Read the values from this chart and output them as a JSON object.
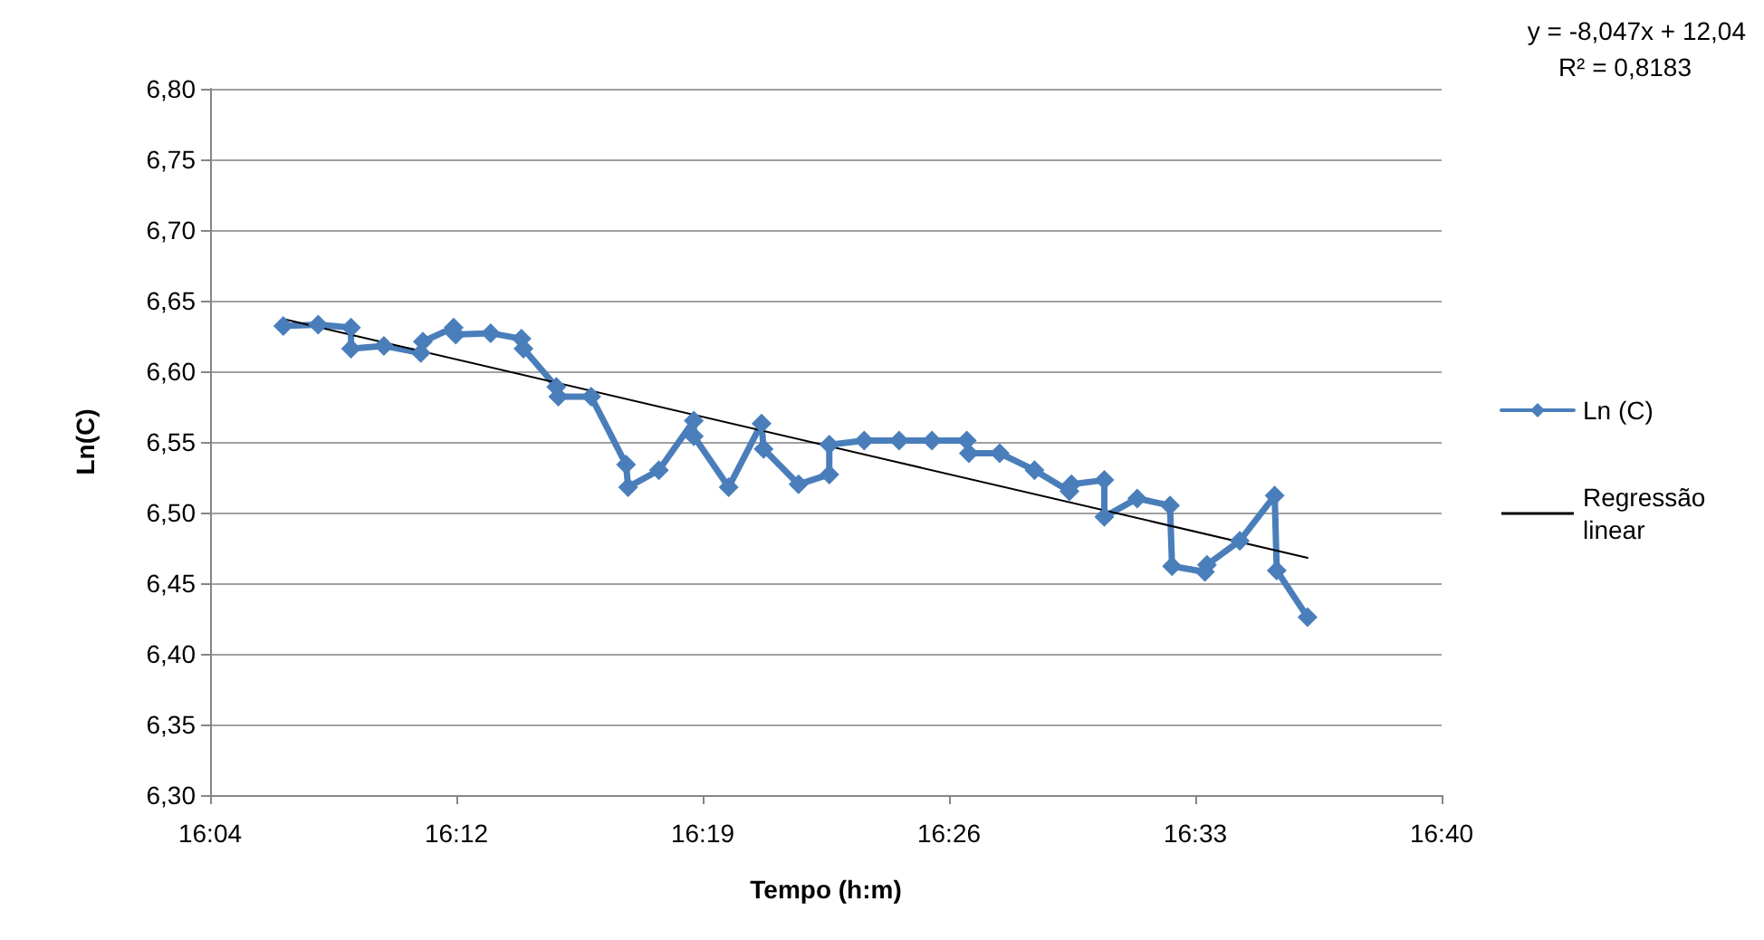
{
  "chart_data": {
    "type": "line",
    "xlabel": "Tempo (h:m)",
    "ylabel": "Ln(C)",
    "series": [
      {
        "name": "Ln (C)",
        "color": "#4a7ebb",
        "marker": "diamond",
        "x": [
          16.109,
          16.126,
          16.142,
          16.142,
          16.158,
          16.176,
          16.177,
          16.192,
          16.193,
          16.21,
          16.225,
          16.226,
          16.242,
          16.243,
          16.259,
          16.276,
          16.277,
          16.292,
          16.309,
          16.309,
          16.326,
          16.342,
          16.343,
          16.36,
          16.375,
          16.375,
          16.392,
          16.409,
          16.425,
          16.442,
          16.443,
          16.458,
          16.475,
          16.492,
          16.493,
          16.509,
          16.509,
          16.525,
          16.541,
          16.542,
          16.558,
          16.559,
          16.575,
          16.592,
          16.593,
          16.608
        ],
        "values": [
          6.632,
          6.633,
          6.631,
          6.616,
          6.618,
          6.613,
          6.621,
          6.631,
          6.626,
          6.627,
          6.623,
          6.616,
          6.589,
          6.582,
          6.582,
          6.534,
          6.518,
          6.53,
          6.565,
          6.554,
          6.518,
          6.563,
          6.545,
          6.52,
          6.527,
          6.548,
          6.551,
          6.551,
          6.551,
          6.551,
          6.542,
          6.542,
          6.53,
          6.515,
          6.52,
          6.523,
          6.497,
          6.51,
          6.505,
          6.462,
          6.458,
          6.463,
          6.48,
          6.512,
          6.459,
          6.426
        ]
      },
      {
        "name": "Regressão linear",
        "color": "#000000",
        "marker": "none",
        "x": [
          16.109,
          16.608
        ],
        "values": [
          6.637,
          6.468
        ]
      }
    ],
    "xlim": [
      16.07333,
      16.67333
    ],
    "xticks": [
      {
        "value": 16.07333,
        "label": "16:04"
      },
      {
        "value": 16.19333,
        "label": "16:12"
      },
      {
        "value": 16.31333,
        "label": "16:19"
      },
      {
        "value": 16.43333,
        "label": "16:26"
      },
      {
        "value": 16.55333,
        "label": "16:33"
      },
      {
        "value": 16.67333,
        "label": "16:40"
      }
    ],
    "ylim": [
      6.3,
      6.8
    ],
    "yticks": [
      {
        "value": 6.3,
        "label": "6,30"
      },
      {
        "value": 6.35,
        "label": "6,35"
      },
      {
        "value": 6.4,
        "label": "6,40"
      },
      {
        "value": 6.45,
        "label": "6,45"
      },
      {
        "value": 6.5,
        "label": "6,50"
      },
      {
        "value": 6.55,
        "label": "6,55"
      },
      {
        "value": 6.6,
        "label": "6,60"
      },
      {
        "value": 6.65,
        "label": "6,65"
      },
      {
        "value": 6.7,
        "label": "6,70"
      },
      {
        "value": 6.75,
        "label": "6,75"
      },
      {
        "value": 6.8,
        "label": "6,80"
      }
    ],
    "grid": "y",
    "legend": "right",
    "annotations": [
      "y = -8,047x + 12,04",
      "R² = 0,8183"
    ]
  }
}
